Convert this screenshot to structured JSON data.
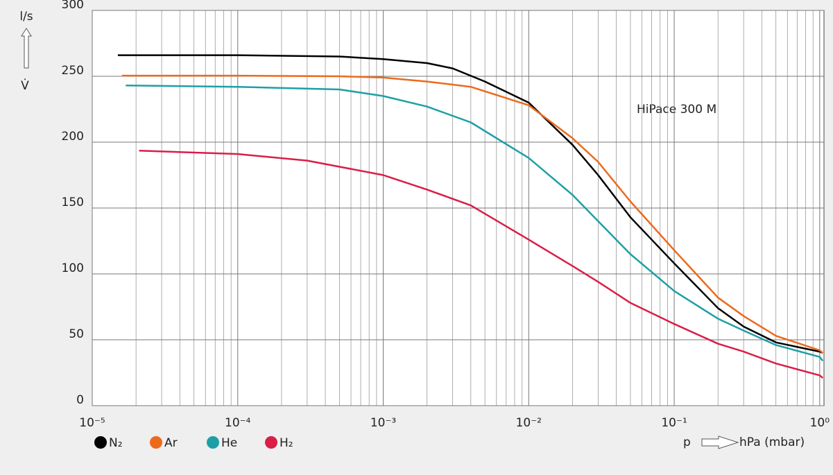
{
  "chart_data": {
    "type": "line",
    "annotation": "HiPace 300 M",
    "y_label": "l/s",
    "y_symbol": "V̇",
    "x_label": "p",
    "x_unit": "hPa (mbar)",
    "xscale": "log",
    "grid": true,
    "xlim": [
      1e-05,
      1.07
    ],
    "ylim": [
      0,
      300
    ],
    "xticks": [
      {
        "value": 1e-05,
        "label": "10⁻⁵"
      },
      {
        "value": 0.0001,
        "label": "10⁻⁴"
      },
      {
        "value": 0.001,
        "label": "10⁻³"
      },
      {
        "value": 0.01,
        "label": "10⁻²"
      },
      {
        "value": 0.1,
        "label": "10⁻¹"
      },
      {
        "value": 1,
        "label": "10⁰"
      }
    ],
    "xminor": [
      2e-05,
      3e-05,
      4e-05,
      5e-05,
      6e-05,
      7e-05,
      8e-05,
      9e-05,
      0.0002,
      0.0003,
      0.0004,
      0.0005,
      0.0006,
      0.0007,
      0.0008,
      0.0009,
      0.002,
      0.003,
      0.004,
      0.005,
      0.006,
      0.007,
      0.008,
      0.009,
      0.02,
      0.03,
      0.04,
      0.05,
      0.06,
      0.07,
      0.08,
      0.09,
      0.2,
      0.3,
      0.4,
      0.5,
      0.6,
      0.7,
      0.8,
      0.9
    ],
    "yticks": [
      0,
      50,
      100,
      150,
      200,
      250,
      300
    ],
    "legend": "bottom-left",
    "series": [
      {
        "name": "N₂",
        "color": "#000000",
        "x": [
          1.5e-05,
          0.0001,
          0.0005,
          0.001,
          0.002,
          0.003,
          0.005,
          0.01,
          0.02,
          0.03,
          0.05,
          0.1,
          0.2,
          0.3,
          0.5,
          1,
          1.05
        ],
        "values": [
          266,
          266,
          265,
          263,
          260,
          256,
          246,
          230,
          198,
          175,
          143,
          108,
          74,
          60,
          48,
          41,
          40
        ]
      },
      {
        "name": "Ar",
        "color": "#ec6a1c",
        "x": [
          1.6e-05,
          0.0001,
          0.0005,
          0.001,
          0.002,
          0.004,
          0.01,
          0.02,
          0.03,
          0.05,
          0.1,
          0.2,
          0.3,
          0.5,
          1,
          1.05
        ],
        "values": [
          250.5,
          250.5,
          250,
          249,
          246,
          242,
          228,
          203,
          185,
          155,
          118,
          82,
          68,
          53,
          42,
          40
        ]
      },
      {
        "name": "He",
        "color": "#1e9fa6",
        "x": [
          1.7e-05,
          0.0001,
          0.0005,
          0.001,
          0.002,
          0.004,
          0.01,
          0.02,
          0.03,
          0.05,
          0.1,
          0.2,
          0.3,
          0.5,
          1,
          1.05
        ],
        "values": [
          243,
          242,
          240,
          235,
          227,
          215,
          188,
          160,
          140,
          115,
          87,
          66,
          57,
          46,
          37,
          34
        ]
      },
      {
        "name": "H₂",
        "color": "#d91e48",
        "x": [
          2.1e-05,
          0.0001,
          0.0003,
          0.001,
          0.002,
          0.004,
          0.01,
          0.02,
          0.03,
          0.05,
          0.1,
          0.2,
          0.3,
          0.5,
          1,
          1.05
        ],
        "values": [
          193.5,
          191,
          186,
          175,
          164,
          152,
          126,
          106,
          94,
          78,
          62,
          47,
          41,
          32,
          23,
          21
        ]
      }
    ]
  }
}
